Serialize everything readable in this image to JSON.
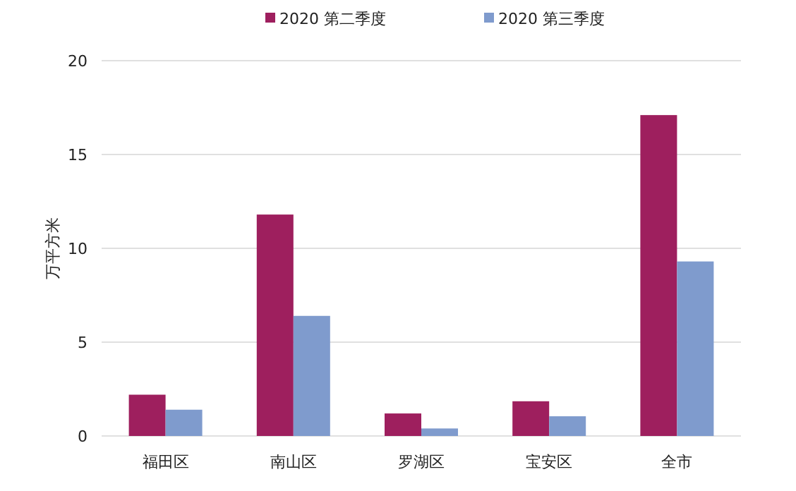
{
  "chart_data": {
    "type": "bar",
    "ylabel": "万平方米",
    "categories": [
      "福田区",
      "南山区",
      "罗湖区",
      "宝安区",
      "全市"
    ],
    "series": [
      {
        "name": "2020 第二季度",
        "color": "#9e1f5e",
        "values": [
          2.2,
          11.8,
          1.2,
          1.85,
          17.1
        ]
      },
      {
        "name": "2020 第三季度",
        "color": "#7f9bcd",
        "values": [
          1.4,
          6.4,
          0.4,
          1.05,
          9.3
        ]
      }
    ],
    "ylim": [
      0,
      20
    ],
    "yticks": [
      0,
      5,
      10,
      15,
      20
    ],
    "grid": "y",
    "legend": "top"
  }
}
